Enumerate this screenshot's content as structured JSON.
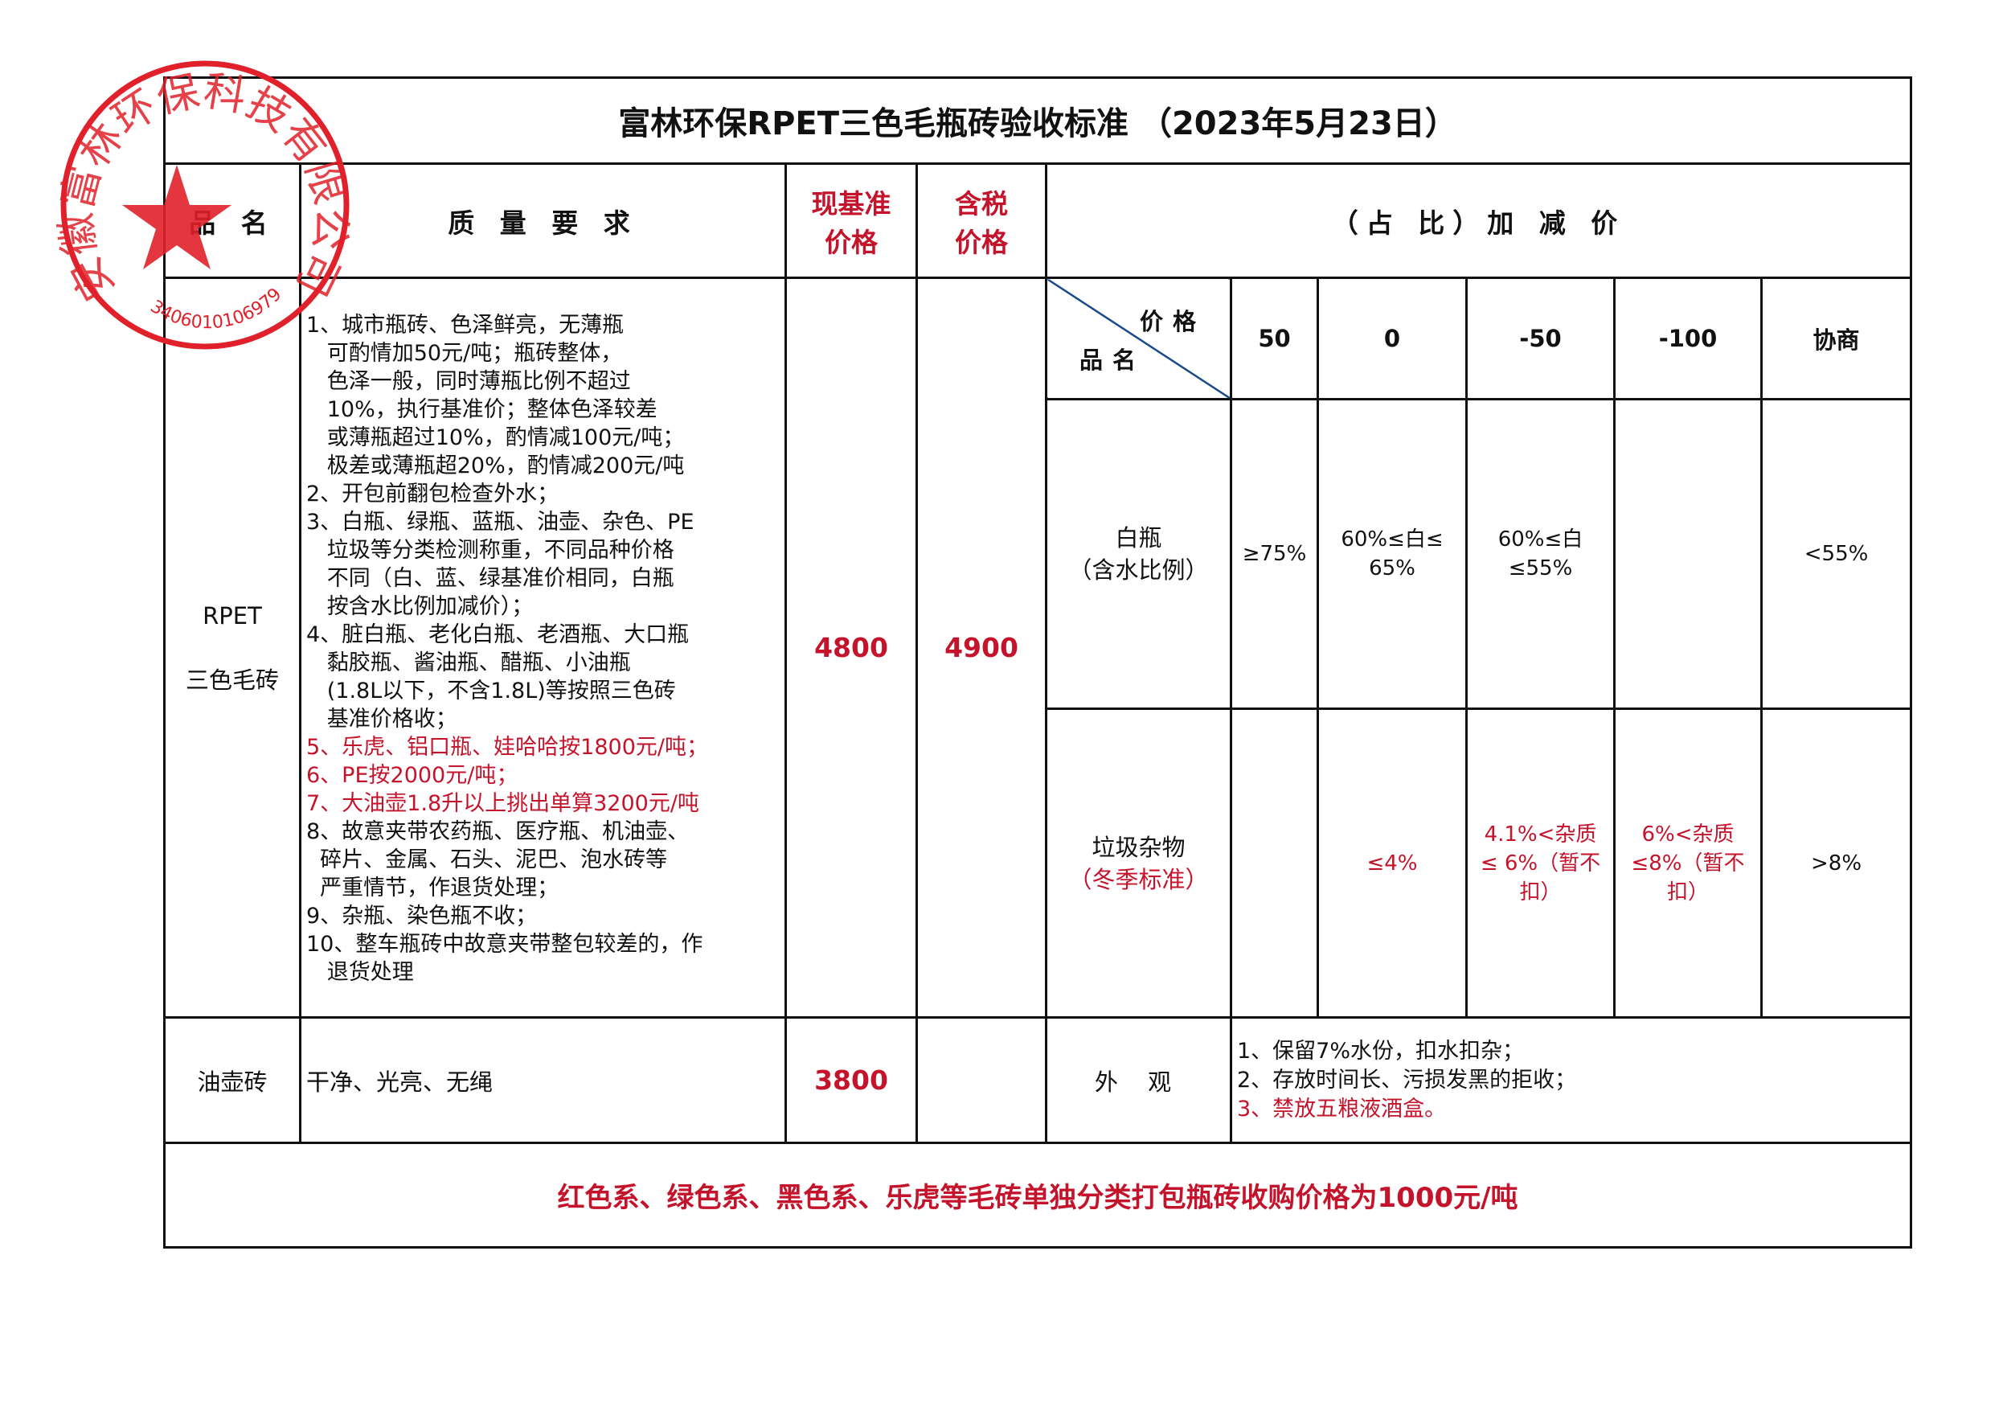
{
  "title": "富林环保RPET三色毛瓶砖验收标准 （2023年5月23日）",
  "header": {
    "product_name": "品 名",
    "quality": "质 量 要 求",
    "base_price": "现基准价格",
    "tax_price": "含税价格",
    "adjust": "（占 比）加 减 价"
  },
  "subheader": {
    "diag_top": "价格",
    "diag_bottom": "品名",
    "levels": [
      "50",
      "0",
      "-50",
      "-100",
      "协商"
    ]
  },
  "rpet": {
    "name_line1": "RPET",
    "name_line2": "三色毛砖",
    "base_price": "4800",
    "tax_price": "4900",
    "quality_lines": [
      {
        "text": "1、城市瓶砖、色泽鲜亮，无薄瓶",
        "red": false
      },
      {
        "text": "   可酌情加50元/吨；瓶砖整体，",
        "red": false
      },
      {
        "text": "   色泽一般，同时薄瓶比例不超过",
        "red": false
      },
      {
        "text": "   10%，执行基准价；整体色泽较差",
        "red": false
      },
      {
        "text": "   或薄瓶超过10%，酌情减100元/吨；",
        "red": false
      },
      {
        "text": "   极差或薄瓶超20%，酌情减200元/吨",
        "red": false
      },
      {
        "text": "2、开包前翻包检查外水；",
        "red": false
      },
      {
        "text": "3、白瓶、绿瓶、蓝瓶、油壶、杂色、PE",
        "red": false
      },
      {
        "text": "   垃圾等分类检测称重，不同品种价格",
        "red": false
      },
      {
        "text": "   不同（白、蓝、绿基准价相同，白瓶",
        "red": false
      },
      {
        "text": "   按含水比例加减价）；",
        "red": false
      },
      {
        "text": "4、脏白瓶、老化白瓶、老酒瓶、大口瓶",
        "red": false
      },
      {
        "text": "   黏胶瓶、酱油瓶、醋瓶、小油瓶",
        "red": false
      },
      {
        "text": "   (1.8L以下，不含1.8L)等按照三色砖",
        "red": false
      },
      {
        "text": "   基准价格收；",
        "red": false
      },
      {
        "text": "5、乐虎、铝口瓶、娃哈哈按1800元/吨；",
        "red": true
      },
      {
        "text": "6、PE按2000元/吨；",
        "red": true
      },
      {
        "text": "7、大油壶1.8升以上挑出单算3200元/吨",
        "red": true
      },
      {
        "text": "8、故意夹带农药瓶、医疗瓶、机油壶、",
        "red": false
      },
      {
        "text": "  碎片、金属、石头、泥巴、泡水砖等",
        "red": false
      },
      {
        "text": "  严重情节，作退货处理；",
        "red": false
      },
      {
        "text": "9、杂瓶、染色瓶不收；",
        "red": false
      },
      {
        "text": "10、整车瓶砖中故意夹带整包较差的，作",
        "red": false
      },
      {
        "text": "   退货处理",
        "red": false
      }
    ],
    "white_bottle": {
      "name_line1": "白瓶",
      "name_line2": "（含水比例）",
      "cells": [
        "≥75%",
        "60%≤白≤ 65%",
        "60%≤白≤55%",
        "",
        "<55%"
      ]
    },
    "impurity": {
      "name_line1": "垃圾杂物",
      "name_line2": "（冬季标准）",
      "cells": [
        "",
        "≤4%",
        "4.1%<杂质≤ 6%（暂不扣）",
        "6%<杂质≤8%（暂不扣）",
        ">8%"
      ]
    }
  },
  "oil": {
    "name": "油壶砖",
    "quality": "干净、光亮、无绳",
    "base_price": "3800",
    "tax_price": "",
    "appearance_label": "外 观",
    "appearance_lines": [
      {
        "text": "1、保留7%水份，扣水扣杂；",
        "red": false
      },
      {
        "text": "2、存放时间长、污损发黑的拒收；",
        "red": false
      },
      {
        "text": "3、禁放五粮液酒盒。",
        "red": true
      }
    ]
  },
  "footer": "红色系、绿色系、黑色系、乐虎等毛砖单独分类打包瓶砖收购价格为1000元/吨",
  "stamp": {
    "text": "安徽富林环保科技有限公司",
    "code": "3406010106979",
    "color": "#e0202a"
  },
  "colors": {
    "red_text": "#c4142c",
    "ink": "#111111"
  }
}
